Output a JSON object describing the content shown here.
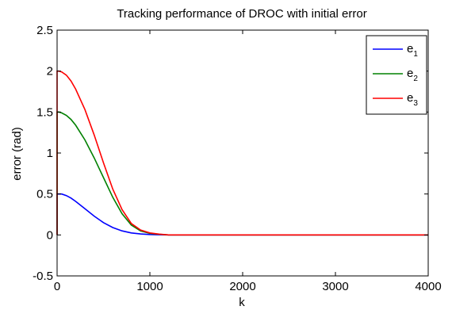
{
  "chart_data": {
    "type": "line",
    "title": "Tracking performance of DROC with initial error",
    "xlabel": "k",
    "ylabel": "error (rad)",
    "xlim": [
      0,
      4000
    ],
    "ylim": [
      -0.5,
      2.5
    ],
    "xticks": [
      0,
      1000,
      2000,
      3000,
      4000
    ],
    "yticks": [
      -0.5,
      0,
      0.5,
      1,
      1.5,
      2,
      2.5
    ],
    "xtick_labels": [
      "0",
      "1000",
      "2000",
      "3000",
      "4000"
    ],
    "ytick_labels": [
      "-0.5",
      "0",
      "0.5",
      "1",
      "1.5",
      "2",
      "2.5"
    ],
    "grid": false,
    "legend_position": "top-right",
    "series": [
      {
        "name": "e",
        "subscript": "1",
        "color": "#0000ff",
        "x": [
          0,
          0,
          20,
          50,
          100,
          150,
          200,
          300,
          400,
          500,
          600,
          700,
          800,
          900,
          1000,
          1100,
          1200,
          1500,
          2000,
          2500,
          3000,
          3500,
          4000
        ],
        "y": [
          0,
          0.5,
          0.5,
          0.5,
          0.48,
          0.45,
          0.41,
          0.32,
          0.23,
          0.15,
          0.09,
          0.05,
          0.025,
          0.012,
          0.005,
          0.002,
          0.0,
          0.0,
          0.0,
          0.0,
          0.0,
          0.0,
          0.0
        ]
      },
      {
        "name": "e",
        "subscript": "2",
        "color": "#008000",
        "x": [
          0,
          0,
          20,
          50,
          100,
          150,
          200,
          300,
          400,
          500,
          600,
          700,
          800,
          900,
          1000,
          1100,
          1200,
          1500,
          2000,
          2500,
          3000,
          3500,
          4000
        ],
        "y": [
          0,
          1.5,
          1.5,
          1.49,
          1.46,
          1.41,
          1.34,
          1.16,
          0.94,
          0.7,
          0.46,
          0.26,
          0.12,
          0.05,
          0.02,
          0.008,
          0.0,
          0.0,
          0.0,
          0.0,
          0.0,
          0.0,
          0.0
        ]
      },
      {
        "name": "e",
        "subscript": "3",
        "color": "#ff0000",
        "x": [
          0,
          0,
          20,
          50,
          100,
          150,
          200,
          300,
          400,
          500,
          600,
          700,
          800,
          900,
          1000,
          1100,
          1200,
          1500,
          2000,
          2500,
          3000,
          3500,
          4000
        ],
        "y": [
          0,
          2.0,
          2.0,
          1.99,
          1.95,
          1.88,
          1.78,
          1.53,
          1.22,
          0.88,
          0.56,
          0.31,
          0.14,
          0.06,
          0.025,
          0.01,
          0.0,
          0.0,
          0.0,
          0.0,
          0.0,
          0.0,
          0.0
        ]
      }
    ]
  }
}
